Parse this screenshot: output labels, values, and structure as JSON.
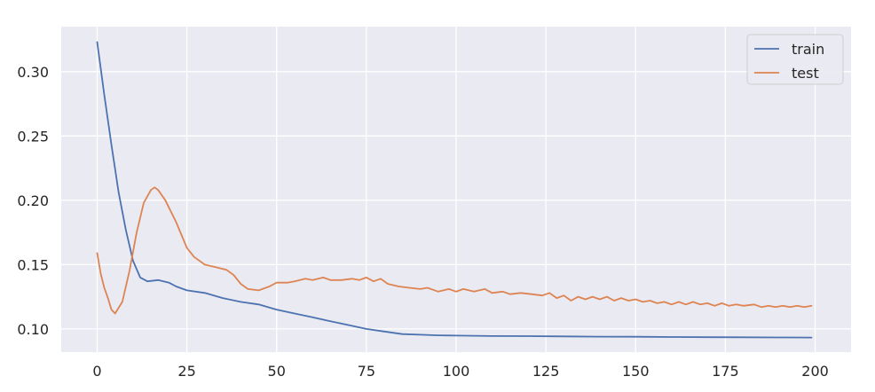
{
  "chart_data": {
    "type": "line",
    "title": "",
    "xlabel": "",
    "ylabel": "",
    "xlim": [
      -10,
      210
    ],
    "ylim": [
      0.082,
      0.335
    ],
    "grid": true,
    "legend_position": "top-right",
    "x_ticks": [
      0,
      25,
      50,
      75,
      100,
      125,
      150,
      175,
      200
    ],
    "x_tick_labels": [
      "0",
      "25",
      "50",
      "75",
      "100",
      "125",
      "150",
      "175",
      "200"
    ],
    "y_ticks": [
      0.1,
      0.15,
      0.2,
      0.25,
      0.3
    ],
    "y_tick_labels": [
      "0.10",
      "0.15",
      "0.20",
      "0.25",
      "0.30"
    ],
    "colors": {
      "background": "#eaeaf2",
      "grid": "#ffffff",
      "train": "#4c72b0",
      "test": "#dd8452"
    },
    "series": [
      {
        "name": "train",
        "color": "#4c72b0",
        "points": [
          [
            0,
            0.323
          ],
          [
            2,
            0.282
          ],
          [
            4,
            0.243
          ],
          [
            6,
            0.206
          ],
          [
            8,
            0.177
          ],
          [
            10,
            0.153
          ],
          [
            12,
            0.14
          ],
          [
            14,
            0.137
          ],
          [
            17,
            0.138
          ],
          [
            20,
            0.136
          ],
          [
            22,
            0.133
          ],
          [
            25,
            0.13
          ],
          [
            30,
            0.128
          ],
          [
            35,
            0.124
          ],
          [
            40,
            0.121
          ],
          [
            45,
            0.119
          ],
          [
            50,
            0.115
          ],
          [
            55,
            0.112
          ],
          [
            60,
            0.109
          ],
          [
            65,
            0.106
          ],
          [
            70,
            0.103
          ],
          [
            75,
            0.1
          ],
          [
            80,
            0.098
          ],
          [
            85,
            0.096
          ],
          [
            90,
            0.0955
          ],
          [
            95,
            0.095
          ],
          [
            100,
            0.0948
          ],
          [
            110,
            0.0945
          ],
          [
            120,
            0.0944
          ],
          [
            130,
            0.0942
          ],
          [
            140,
            0.094
          ],
          [
            150,
            0.0939
          ],
          [
            160,
            0.0937
          ],
          [
            170,
            0.0936
          ],
          [
            180,
            0.0935
          ],
          [
            190,
            0.0934
          ],
          [
            199,
            0.0933
          ]
        ]
      },
      {
        "name": "test",
        "color": "#dd8452",
        "points": [
          [
            0,
            0.159
          ],
          [
            1,
            0.143
          ],
          [
            2,
            0.132
          ],
          [
            3,
            0.124
          ],
          [
            4,
            0.115
          ],
          [
            5,
            0.112
          ],
          [
            7,
            0.121
          ],
          [
            9,
            0.145
          ],
          [
            11,
            0.175
          ],
          [
            13,
            0.198
          ],
          [
            15,
            0.208
          ],
          [
            16,
            0.21
          ],
          [
            17,
            0.208
          ],
          [
            19,
            0.2
          ],
          [
            22,
            0.183
          ],
          [
            25,
            0.163
          ],
          [
            27,
            0.156
          ],
          [
            30,
            0.15
          ],
          [
            33,
            0.148
          ],
          [
            36,
            0.146
          ],
          [
            38,
            0.142
          ],
          [
            40,
            0.135
          ],
          [
            42,
            0.131
          ],
          [
            45,
            0.13
          ],
          [
            48,
            0.133
          ],
          [
            50,
            0.136
          ],
          [
            53,
            0.136
          ],
          [
            55,
            0.137
          ],
          [
            58,
            0.139
          ],
          [
            60,
            0.138
          ],
          [
            63,
            0.14
          ],
          [
            65,
            0.138
          ],
          [
            68,
            0.138
          ],
          [
            71,
            0.139
          ],
          [
            73,
            0.138
          ],
          [
            75,
            0.14
          ],
          [
            77,
            0.137
          ],
          [
            79,
            0.139
          ],
          [
            81,
            0.135
          ],
          [
            84,
            0.133
          ],
          [
            87,
            0.132
          ],
          [
            90,
            0.131
          ],
          [
            92,
            0.132
          ],
          [
            95,
            0.129
          ],
          [
            98,
            0.131
          ],
          [
            100,
            0.129
          ],
          [
            102,
            0.131
          ],
          [
            105,
            0.129
          ],
          [
            108,
            0.131
          ],
          [
            110,
            0.128
          ],
          [
            113,
            0.129
          ],
          [
            115,
            0.127
          ],
          [
            118,
            0.128
          ],
          [
            121,
            0.127
          ],
          [
            124,
            0.126
          ],
          [
            126,
            0.128
          ],
          [
            128,
            0.124
          ],
          [
            130,
            0.126
          ],
          [
            132,
            0.122
          ],
          [
            134,
            0.125
          ],
          [
            136,
            0.123
          ],
          [
            138,
            0.125
          ],
          [
            140,
            0.123
          ],
          [
            142,
            0.125
          ],
          [
            144,
            0.122
          ],
          [
            146,
            0.124
          ],
          [
            148,
            0.122
          ],
          [
            150,
            0.123
          ],
          [
            152,
            0.121
          ],
          [
            154,
            0.122
          ],
          [
            156,
            0.12
          ],
          [
            158,
            0.121
          ],
          [
            160,
            0.119
          ],
          [
            162,
            0.121
          ],
          [
            164,
            0.119
          ],
          [
            166,
            0.121
          ],
          [
            168,
            0.119
          ],
          [
            170,
            0.12
          ],
          [
            172,
            0.118
          ],
          [
            174,
            0.12
          ],
          [
            176,
            0.118
          ],
          [
            178,
            0.119
          ],
          [
            180,
            0.118
          ],
          [
            183,
            0.119
          ],
          [
            185,
            0.117
          ],
          [
            187,
            0.118
          ],
          [
            189,
            0.117
          ],
          [
            191,
            0.118
          ],
          [
            193,
            0.117
          ],
          [
            195,
            0.118
          ],
          [
            197,
            0.117
          ],
          [
            199,
            0.118
          ]
        ]
      }
    ]
  }
}
